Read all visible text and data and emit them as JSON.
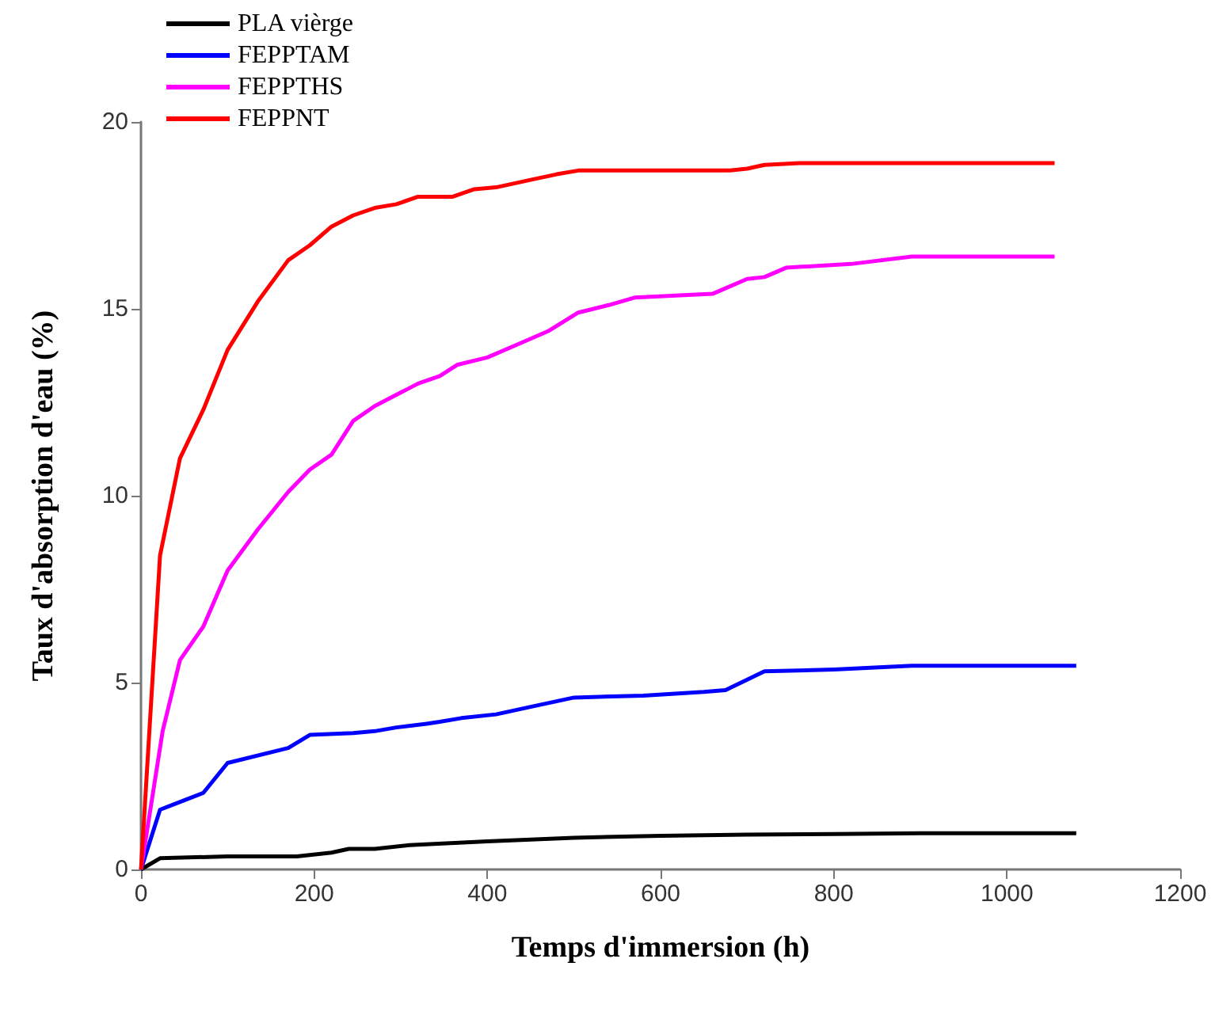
{
  "chart_data": {
    "type": "line",
    "xlabel": "Temps d'immersion (h)",
    "ylabel": "Taux d'absorption d'eau (%)",
    "xlim": [
      0,
      1200
    ],
    "xticks": [
      0,
      200,
      400,
      600,
      800,
      1000,
      1200
    ],
    "ylim": [
      0,
      20
    ],
    "yticks": [
      0,
      5,
      10,
      15,
      20
    ],
    "grid": false,
    "legend": "top left",
    "marker": "none",
    "line_style": "solid",
    "series": [
      {
        "name": "PLA vièrge",
        "color": "#000000",
        "x": [
          0,
          22,
          100,
          180,
          220,
          240,
          270,
          310,
          400,
          500,
          600,
          700,
          800,
          900,
          1080
        ],
        "values": [
          0,
          0.3,
          0.35,
          0.35,
          0.45,
          0.55,
          0.55,
          0.65,
          0.75,
          0.85,
          0.9,
          0.93,
          0.95,
          0.97,
          0.97
        ]
      },
      {
        "name": "FEPPTAM",
        "color": "#0000ff",
        "x": [
          0,
          22,
          50,
          72,
          100,
          170,
          195,
          245,
          270,
          295,
          330,
          345,
          370,
          410,
          450,
          500,
          580,
          650,
          675,
          720,
          800,
          890,
          1080
        ],
        "values": [
          0,
          1.6,
          1.85,
          2.05,
          2.85,
          3.25,
          3.6,
          3.65,
          3.7,
          3.8,
          3.9,
          3.95,
          4.05,
          4.15,
          4.35,
          4.6,
          4.65,
          4.75,
          4.8,
          5.3,
          5.35,
          5.45,
          5.45
        ]
      },
      {
        "name": "FEPPTHS",
        "color": "#ff00ff",
        "x": [
          0,
          25,
          45,
          72,
          100,
          135,
          170,
          195,
          220,
          245,
          270,
          295,
          320,
          345,
          365,
          400,
          430,
          470,
          505,
          540,
          570,
          660,
          700,
          720,
          745,
          820,
          890,
          1055
        ],
        "values": [
          0,
          3.7,
          5.6,
          6.5,
          8,
          9.1,
          10.1,
          10.7,
          11.1,
          12,
          12.4,
          12.7,
          13,
          13.2,
          13.5,
          13.7,
          14,
          14.4,
          14.9,
          15.1,
          15.3,
          15.4,
          15.8,
          15.85,
          16.1,
          16.2,
          16.4,
          16.4
        ]
      },
      {
        "name": "FEPPNT",
        "color": "#ff0000",
        "x": [
          0,
          22,
          45,
          72,
          100,
          135,
          170,
          195,
          220,
          245,
          270,
          295,
          320,
          360,
          385,
          410,
          450,
          480,
          505,
          580,
          680,
          700,
          720,
          760,
          1055
        ],
        "values": [
          0,
          8.4,
          11,
          12.3,
          13.9,
          15.2,
          16.3,
          16.7,
          17.2,
          17.5,
          17.7,
          17.8,
          18,
          18,
          18.2,
          18.25,
          18.45,
          18.6,
          18.7,
          18.7,
          18.7,
          18.75,
          18.85,
          18.9,
          18.9
        ]
      }
    ]
  }
}
